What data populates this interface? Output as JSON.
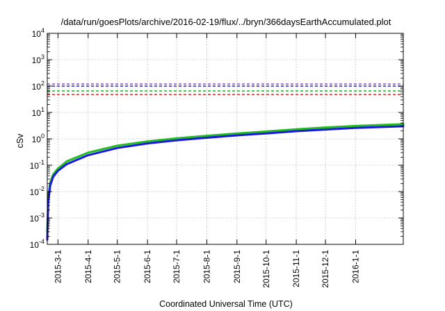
{
  "chart_data": {
    "type": "line",
    "title": "/data/run/goesPlots/archive/2016-02-19/flux/../bryn/366daysEarthAccumulated.plot",
    "xlabel": "Coordinated Universal Time (UTC)",
    "ylabel": "cSv",
    "yscale": "log",
    "ylim": [
      0.0001,
      10000
    ],
    "xlim": [
      "2015-02-18",
      "2016-02-19"
    ],
    "grid": true,
    "y_ticks": [
      {
        "base": "10",
        "exp": "-4",
        "value": 0.0001
      },
      {
        "base": "10",
        "exp": "-3",
        "value": 0.001
      },
      {
        "base": "10",
        "exp": "-2",
        "value": 0.01
      },
      {
        "base": "10",
        "exp": "-1",
        "value": 0.1
      },
      {
        "base": "10",
        "exp": "0",
        "value": 1
      },
      {
        "base": "10",
        "exp": "1",
        "value": 10
      },
      {
        "base": "10",
        "exp": "2",
        "value": 100
      },
      {
        "base": "10",
        "exp": "3",
        "value": 1000
      },
      {
        "base": "10",
        "exp": "4",
        "value": 10000
      }
    ],
    "x_ticks": [
      "2015-3-1",
      "2015-4-1",
      "2015-5-1",
      "2015-6-1",
      "2015-7-1",
      "2015-8-1",
      "2015-9-1",
      "2015-10-1",
      "2015-11-1",
      "2015-12-1",
      "2016-1-1"
    ],
    "thresholds": [
      {
        "value": 120,
        "color": "#8e44c4"
      },
      {
        "value": 100,
        "color": "#2222cc"
      },
      {
        "value": 65,
        "color": "#22bb22"
      },
      {
        "value": 48,
        "color": "#dd2222"
      }
    ],
    "series": [
      {
        "color": "#22bb22",
        "points": [
          {
            "x": "2015-02-18",
            "y": 0.0003
          },
          {
            "x": "2015-02-19",
            "y": 0.006
          },
          {
            "x": "2015-02-21",
            "y": 0.022
          },
          {
            "x": "2015-02-24",
            "y": 0.045
          },
          {
            "x": "2015-03-01",
            "y": 0.075
          },
          {
            "x": "2015-03-10",
            "y": 0.14
          },
          {
            "x": "2015-04-01",
            "y": 0.3
          },
          {
            "x": "2015-05-01",
            "y": 0.55
          },
          {
            "x": "2015-06-01",
            "y": 0.8
          },
          {
            "x": "2015-07-01",
            "y": 1.05
          },
          {
            "x": "2015-08-01",
            "y": 1.3
          },
          {
            "x": "2015-09-01",
            "y": 1.6
          },
          {
            "x": "2015-10-01",
            "y": 1.9
          },
          {
            "x": "2015-11-01",
            "y": 2.3
          },
          {
            "x": "2015-12-01",
            "y": 2.7
          },
          {
            "x": "2016-01-01",
            "y": 3.1
          },
          {
            "x": "2016-02-19",
            "y": 3.6
          }
        ]
      },
      {
        "color": "#1a1adc",
        "points": [
          {
            "x": "2015-02-18",
            "y": 0.00015
          },
          {
            "x": "2015-02-19",
            "y": 0.004
          },
          {
            "x": "2015-02-21",
            "y": 0.017
          },
          {
            "x": "2015-02-24",
            "y": 0.036
          },
          {
            "x": "2015-03-01",
            "y": 0.062
          },
          {
            "x": "2015-03-10",
            "y": 0.11
          },
          {
            "x": "2015-04-01",
            "y": 0.24
          },
          {
            "x": "2015-05-01",
            "y": 0.45
          },
          {
            "x": "2015-06-01",
            "y": 0.67
          },
          {
            "x": "2015-07-01",
            "y": 0.88
          },
          {
            "x": "2015-08-01",
            "y": 1.1
          },
          {
            "x": "2015-09-01",
            "y": 1.35
          },
          {
            "x": "2015-10-01",
            "y": 1.6
          },
          {
            "x": "2015-11-01",
            "y": 1.95
          },
          {
            "x": "2015-12-01",
            "y": 2.25
          },
          {
            "x": "2016-01-01",
            "y": 2.6
          },
          {
            "x": "2016-02-19",
            "y": 3.0
          }
        ]
      }
    ]
  }
}
